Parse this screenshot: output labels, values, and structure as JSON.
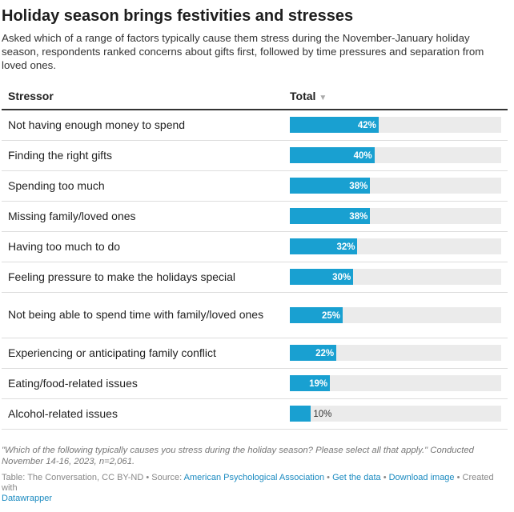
{
  "title": "Holiday season brings festivities and stresses",
  "subtitle": "Asked which of a range of factors typically cause them stress during the November-January holiday season, respondents ranked concerns about gifts first, followed by time pressures and separation from loved ones.",
  "chart_data": {
    "type": "table",
    "columns": [
      "Stressor",
      "Total"
    ],
    "sort_icon": "▼",
    "bar_color": "#19a0d1",
    "xlim": [
      0,
      100
    ],
    "rows": [
      {
        "label": "Not having enough money to spend",
        "value": 42,
        "text": "42%"
      },
      {
        "label": "Finding the right gifts",
        "value": 40,
        "text": "40%"
      },
      {
        "label": "Spending too much",
        "value": 38,
        "text": "38%"
      },
      {
        "label": "Missing family/loved ones",
        "value": 38,
        "text": "38%"
      },
      {
        "label": "Having too much to do",
        "value": 32,
        "text": "32%"
      },
      {
        "label": "Feeling pressure to make the holidays special",
        "value": 30,
        "text": "30%"
      },
      {
        "label": "Not being able to spend time with family/loved ones",
        "value": 25,
        "text": "25%"
      },
      {
        "label": "Experiencing or anticipating family conflict",
        "value": 22,
        "text": "22%"
      },
      {
        "label": "Eating/food-related issues",
        "value": 19,
        "text": "19%"
      },
      {
        "label": "Alcohol-related issues",
        "value": 10,
        "text": "10%"
      }
    ]
  },
  "note": "\"Which of the following typically causes you stress during the holiday season? Please select all that apply.\" Conducted November 14-16, 2023, n=2,061.",
  "footer": {
    "prefix": "Table: The Conversation, CC BY-ND • Source: ",
    "source": "American Psychological Association",
    "sep1": " • ",
    "get_data": "Get the data",
    "sep2": " • ",
    "download": "Download image",
    "sep3": " • Created with ",
    "datawrapper": "Datawrapper"
  }
}
